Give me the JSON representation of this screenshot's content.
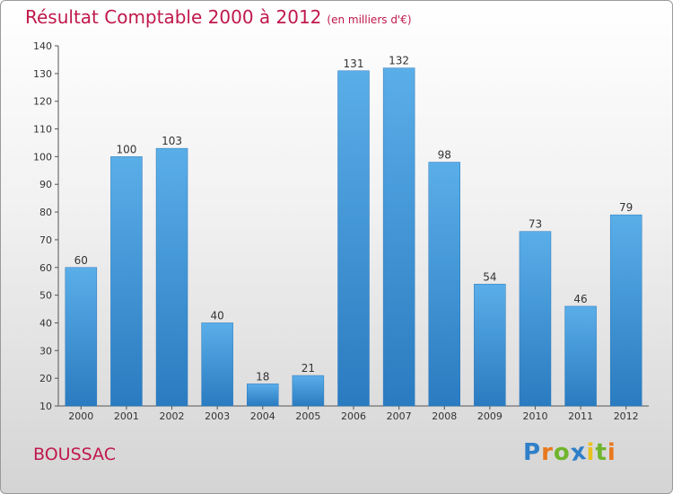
{
  "chart_data": {
    "type": "bar",
    "title": "Résultat Comptable 2000 à 2012",
    "subtitle": "(en milliers d'€)",
    "categories": [
      "2000",
      "2001",
      "2002",
      "2003",
      "2004",
      "2005",
      "2006",
      "2007",
      "2008",
      "2009",
      "2010",
      "2011",
      "2012"
    ],
    "values": [
      60,
      100,
      103,
      40,
      18,
      21,
      131,
      132,
      98,
      54,
      73,
      46,
      79
    ],
    "ylim": [
      10,
      140
    ],
    "yticks": [
      10,
      20,
      30,
      40,
      50,
      60,
      70,
      80,
      90,
      100,
      110,
      120,
      130,
      140
    ],
    "xlabel": "",
    "ylabel": "",
    "grid": false,
    "colors": {
      "bar_top": "#5aaee8",
      "bar_bottom": "#2a7bc0",
      "title": "#c0184c"
    }
  },
  "commune": "BOUSSAC",
  "logo": {
    "text": "Proxiti",
    "letters": [
      {
        "ch": "P",
        "color": "#2f7fc8"
      },
      {
        "ch": "r",
        "color": "#e8791e"
      },
      {
        "ch": "o",
        "color": "#6fb52c"
      },
      {
        "ch": "x",
        "color": "#2f7fc8"
      },
      {
        "ch": "i",
        "color": "#e8c21e"
      },
      {
        "ch": "t",
        "color": "#6fb52c"
      },
      {
        "ch": "i",
        "color": "#e8791e"
      }
    ]
  }
}
